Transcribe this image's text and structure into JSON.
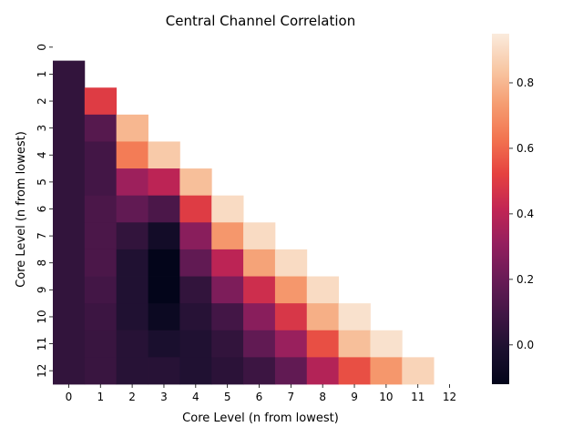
{
  "chart_data": {
    "type": "heatmap",
    "title": "Central Channel Correlation",
    "xlabel": "Core Level (n from lowest)",
    "ylabel": "Core Level (n from lowest)",
    "x_ticks": [
      "0",
      "1",
      "2",
      "3",
      "4",
      "5",
      "6",
      "7",
      "8",
      "9",
      "10",
      "11",
      "12"
    ],
    "y_ticks": [
      "0",
      "1",
      "2",
      "3",
      "4",
      "5",
      "6",
      "7",
      "8",
      "9",
      "10",
      "11",
      "12"
    ],
    "colorbar": {
      "ticks": [
        0.0,
        0.2,
        0.4,
        0.6,
        0.8
      ],
      "tick_labels": [
        "0.0",
        "0.2",
        "0.4",
        "0.6",
        "0.8"
      ],
      "vmin": -0.12,
      "vmax": 0.95,
      "colormap": "rocket"
    },
    "mask": "upper-triangle-including-diagonal",
    "values": [
      [
        null,
        null,
        null,
        null,
        null,
        null,
        null,
        null,
        null,
        null,
        null,
        null,
        null
      ],
      [
        0.05,
        null,
        null,
        null,
        null,
        null,
        null,
        null,
        null,
        null,
        null,
        null,
        null
      ],
      [
        0.05,
        0.5,
        null,
        null,
        null,
        null,
        null,
        null,
        null,
        null,
        null,
        null,
        null
      ],
      [
        0.05,
        0.15,
        0.8,
        null,
        null,
        null,
        null,
        null,
        null,
        null,
        null,
        null,
        null
      ],
      [
        0.05,
        0.1,
        0.65,
        0.85,
        null,
        null,
        null,
        null,
        null,
        null,
        null,
        null,
        null
      ],
      [
        0.05,
        0.1,
        0.33,
        0.4,
        0.82,
        null,
        null,
        null,
        null,
        null,
        null,
        null,
        null
      ],
      [
        0.05,
        0.12,
        0.18,
        0.12,
        0.5,
        0.9,
        null,
        null,
        null,
        null,
        null,
        null,
        null
      ],
      [
        0.05,
        0.12,
        0.05,
        -0.05,
        0.28,
        0.72,
        0.9,
        null,
        null,
        null,
        null,
        null,
        null
      ],
      [
        0.05,
        0.12,
        0.0,
        -0.12,
        0.18,
        0.4,
        0.75,
        0.9,
        null,
        null,
        null,
        null,
        null
      ],
      [
        0.05,
        0.1,
        0.0,
        -0.12,
        0.05,
        0.25,
        0.45,
        0.72,
        0.9,
        null,
        null,
        null,
        null
      ],
      [
        0.05,
        0.08,
        0.0,
        -0.08,
        0.02,
        0.1,
        0.28,
        0.48,
        0.78,
        0.92,
        null,
        null,
        null
      ],
      [
        0.05,
        0.07,
        0.02,
        -0.02,
        0.0,
        0.05,
        0.18,
        0.32,
        0.55,
        0.82,
        0.92,
        null,
        null
      ],
      [
        0.05,
        0.07,
        0.02,
        0.02,
        0.0,
        0.03,
        0.08,
        0.18,
        0.38,
        0.55,
        0.72,
        0.88,
        null
      ]
    ]
  }
}
